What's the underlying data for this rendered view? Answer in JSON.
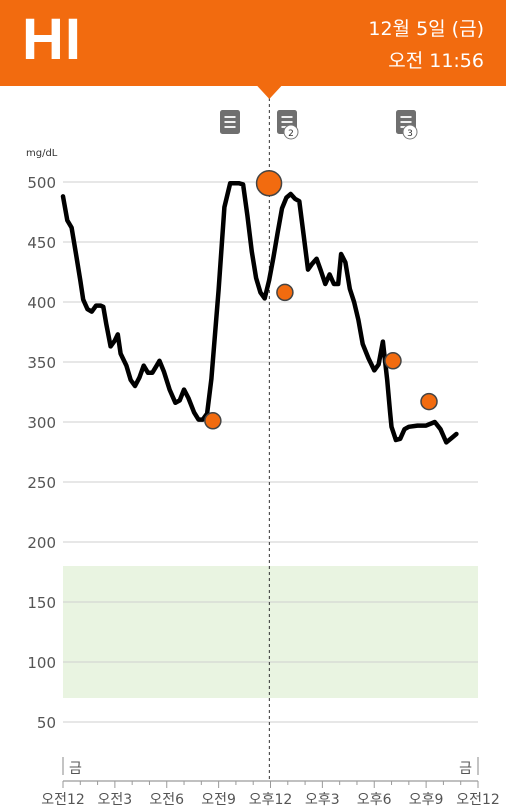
{
  "header": {
    "reading": "HI",
    "date": "12월 5일 (금)",
    "time": "오전 11:56",
    "color": "#f26b0f"
  },
  "markers": [
    {
      "icon": "note-icon",
      "badge": ""
    },
    {
      "icon": "note-icon",
      "badge": "2"
    },
    {
      "icon": "note-icon",
      "badge": "3"
    }
  ],
  "chart_data": {
    "type": "line",
    "ylabel": "mg/dL",
    "ylim": [
      25,
      525
    ],
    "yticks": [
      50,
      100,
      150,
      200,
      250,
      300,
      350,
      400,
      450,
      500
    ],
    "target_range": [
      70,
      180
    ],
    "target_color": "#e9f4e1",
    "cursor_time": "11:56",
    "day_labels": [
      {
        "time": "00:00",
        "label": "금"
      },
      {
        "time": "24:00",
        "label": "금"
      }
    ],
    "xticks": [
      {
        "time": "00:00",
        "label": "오전12"
      },
      {
        "time": "03:00",
        "label": "오전3"
      },
      {
        "time": "06:00",
        "label": "오전6"
      },
      {
        "time": "09:00",
        "label": "오전9"
      },
      {
        "time": "12:00",
        "label": "오후12"
      },
      {
        "time": "15:00",
        "label": "오후3"
      },
      {
        "time": "18:00",
        "label": "오후6"
      },
      {
        "time": "21:00",
        "label": "오후9"
      },
      {
        "time": "24:00",
        "label": "오전12"
      }
    ],
    "series": [
      {
        "color": "#000000",
        "points": [
          [
            "00:00",
            488
          ],
          [
            "00:15",
            468
          ],
          [
            "00:30",
            462
          ],
          [
            "00:45",
            440
          ],
          [
            "01:00",
            418
          ],
          [
            "01:10",
            402
          ],
          [
            "01:25",
            394
          ],
          [
            "01:40",
            392
          ],
          [
            "01:55",
            397
          ],
          [
            "02:10",
            397
          ],
          [
            "02:20",
            396
          ],
          [
            "02:30",
            382
          ],
          [
            "02:45",
            363
          ],
          [
            "03:00",
            368
          ],
          [
            "03:10",
            373
          ],
          [
            "03:20",
            357
          ],
          [
            "03:40",
            347
          ],
          [
            "03:55",
            335
          ],
          [
            "04:10",
            330
          ],
          [
            "04:25",
            337
          ],
          [
            "04:40",
            347
          ],
          [
            "04:55",
            341
          ],
          [
            "05:10",
            341
          ],
          [
            "05:25",
            347
          ],
          [
            "05:35",
            351
          ],
          [
            "05:50",
            342
          ],
          [
            "06:10",
            327
          ],
          [
            "06:30",
            316
          ],
          [
            "06:45",
            318
          ],
          [
            "07:00",
            327
          ],
          [
            "07:15",
            320
          ],
          [
            "07:35",
            308
          ],
          [
            "07:50",
            302
          ],
          [
            "08:05",
            302
          ],
          [
            "08:20",
            307
          ],
          [
            "08:35",
            336
          ],
          [
            "09:00",
            410
          ],
          [
            "09:20",
            479
          ],
          [
            "09:40",
            499
          ],
          [
            "09:55",
            499
          ],
          [
            "10:10",
            499
          ],
          [
            "10:25",
            498
          ],
          [
            "10:40",
            472
          ],
          [
            "10:55",
            442
          ],
          [
            "11:10",
            420
          ],
          [
            "11:25",
            408
          ],
          [
            "11:40",
            403
          ],
          [
            "11:55",
            418
          ],
          [
            "12:10",
            437
          ],
          [
            "12:25",
            458
          ],
          [
            "12:40",
            478
          ],
          [
            "12:55",
            487
          ],
          [
            "13:10",
            490
          ],
          [
            "13:25",
            486
          ],
          [
            "13:40",
            484
          ],
          [
            "13:55",
            456
          ],
          [
            "14:10",
            427
          ],
          [
            "14:25",
            432
          ],
          [
            "14:40",
            436
          ],
          [
            "14:55",
            426
          ],
          [
            "15:10",
            415
          ],
          [
            "15:25",
            423
          ],
          [
            "15:40",
            415
          ],
          [
            "15:55",
            415
          ],
          [
            "16:05",
            440
          ],
          [
            "16:20",
            433
          ],
          [
            "16:35",
            411
          ],
          [
            "16:50",
            400
          ],
          [
            "17:05",
            385
          ],
          [
            "17:20",
            365
          ],
          [
            "17:40",
            353
          ],
          [
            "18:00",
            343
          ],
          [
            "18:15",
            348
          ],
          [
            "18:30",
            367
          ],
          [
            "18:45",
            335
          ],
          [
            "18:55",
            308
          ],
          [
            "19:00",
            296
          ],
          [
            "19:15",
            285
          ],
          [
            "19:30",
            286
          ],
          [
            "19:45",
            294
          ],
          [
            "20:00",
            296
          ],
          [
            "20:30",
            297
          ],
          [
            "21:00",
            297
          ],
          [
            "21:30",
            300
          ],
          [
            "21:50",
            294
          ],
          [
            "22:10",
            283
          ],
          [
            "22:30",
            287
          ],
          [
            "22:45",
            290
          ]
        ]
      }
    ],
    "events": [
      {
        "time": "08:40",
        "value": 301
      },
      {
        "time": "11:55",
        "value": 499,
        "selected": true
      },
      {
        "time": "12:50",
        "value": 408
      },
      {
        "time": "19:05",
        "value": 351
      },
      {
        "time": "21:10",
        "value": 317
      }
    ]
  }
}
